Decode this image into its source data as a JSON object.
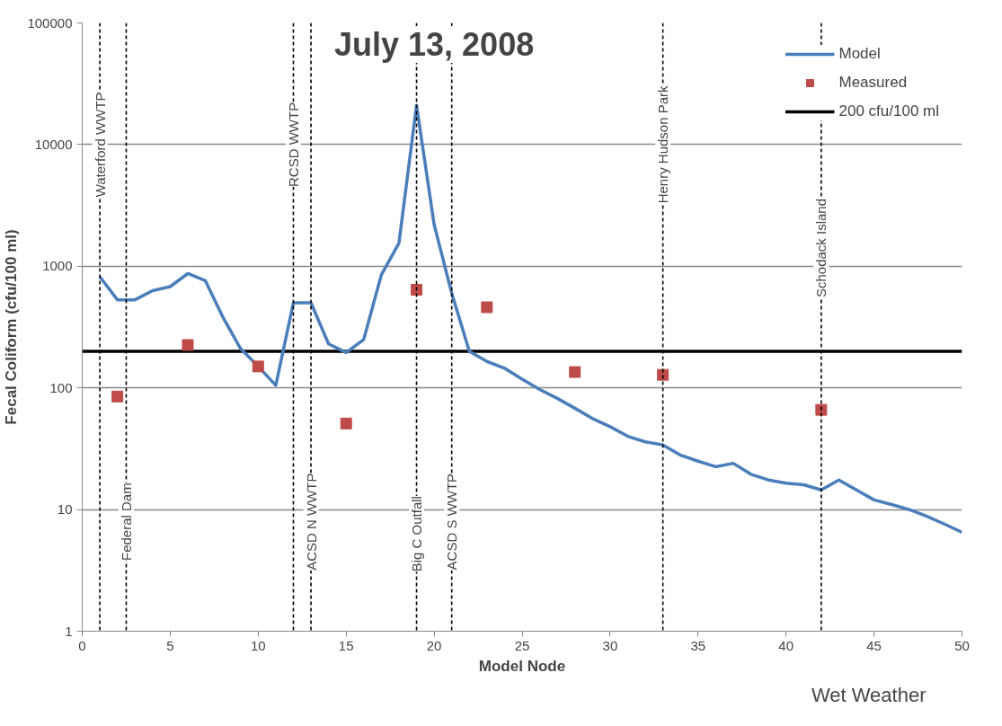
{
  "chart_data": {
    "type": "line",
    "title": "July 13, 2008",
    "xlabel": "Model Node",
    "ylabel": "Fecal Coliform (cfu/100 ml)",
    "annotations": [
      "Wet Weather"
    ],
    "series": [
      {
        "name": "Model",
        "color": "#4a7ebb",
        "marker": "none",
        "x": [
          1,
          2,
          3,
          4,
          5,
          6,
          7,
          8,
          9,
          10,
          11,
          12,
          13,
          14,
          15,
          16,
          17,
          18,
          19,
          20,
          21,
          22,
          23,
          24,
          25,
          26,
          27,
          28,
          29,
          30,
          31,
          32,
          33,
          34,
          35,
          36,
          37,
          38,
          39,
          40,
          41,
          42,
          43,
          44,
          45,
          46,
          47,
          48,
          49,
          50
        ],
        "values": [
          820,
          530,
          530,
          630,
          680,
          870,
          760,
          380,
          210,
          150,
          105,
          500,
          500,
          230,
          195,
          250,
          850,
          1550,
          21000,
          2200,
          600,
          200,
          165,
          145,
          118,
          97,
          82,
          68,
          56,
          48,
          40,
          36,
          34,
          28,
          25,
          22.5,
          24,
          19.5,
          17.5,
          16.5,
          16,
          14.5,
          17.5,
          14.5,
          12,
          11,
          10,
          8.8,
          7.6,
          6.5
        ]
      },
      {
        "name": "Measured",
        "type": "scatter",
        "color": "#be4b48",
        "marker": "square",
        "x": [
          2,
          6,
          10,
          15,
          19,
          23,
          28,
          33,
          42
        ],
        "values": [
          85,
          225,
          150,
          51,
          640,
          460,
          135,
          128,
          66
        ]
      }
    ],
    "ref_lines": [
      {
        "axis": "y",
        "value": 200,
        "label": "200 cfu/100 ml",
        "color": "#000000",
        "line_style": "solid"
      },
      {
        "axis": "x",
        "value": 1,
        "label": "Waterford WWTP",
        "color": "#000000",
        "line_style": "dashed"
      },
      {
        "axis": "x",
        "value": 2.5,
        "label": "Federal Dam",
        "color": "#000000",
        "line_style": "dashed"
      },
      {
        "axis": "x",
        "value": 12,
        "label": "RCSD WWTP",
        "color": "#000000",
        "line_style": "dashed"
      },
      {
        "axis": "x",
        "value": 13,
        "label": "ACSD N WWTP",
        "color": "#000000",
        "line_style": "dashed"
      },
      {
        "axis": "x",
        "value": 19,
        "label": "Big C Outfall",
        "color": "#000000",
        "line_style": "dashed"
      },
      {
        "axis": "x",
        "value": 21,
        "label": "ACSD S WWTP",
        "color": "#000000",
        "line_style": "dashed"
      },
      {
        "axis": "x",
        "value": 33,
        "label": "Henry Hudson Park",
        "color": "#000000",
        "line_style": "dashed"
      },
      {
        "axis": "x",
        "value": 42,
        "label": "Schodack Island",
        "color": "#000000",
        "line_style": "dashed"
      }
    ],
    "xlim": [
      0,
      50
    ],
    "xticks": [
      0,
      5,
      10,
      15,
      20,
      25,
      30,
      35,
      40,
      45,
      50
    ],
    "ylim": [
      1,
      100000
    ],
    "yticks": [
      1,
      10,
      100,
      1000,
      10000,
      100000
    ],
    "log": "y",
    "grid": "y",
    "legend": "top right"
  }
}
